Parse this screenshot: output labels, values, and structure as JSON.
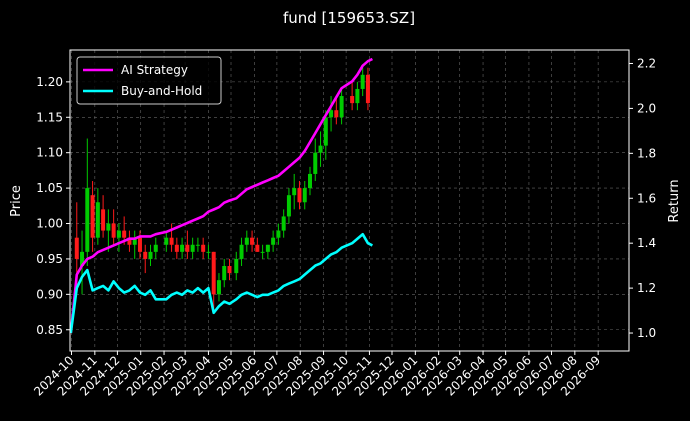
{
  "chart_data": {
    "type": "line",
    "title": "fund [159653.SZ]",
    "ylabel": "Price",
    "ylabel_right": "Return",
    "ylim": [
      0.82,
      1.245
    ],
    "ylim_right": [
      0.92,
      2.26
    ],
    "yticks": [
      0.85,
      0.9,
      0.95,
      1.0,
      1.05,
      1.1,
      1.15,
      1.2
    ],
    "yticks_right": [
      1.0,
      1.2,
      1.4,
      1.6,
      1.8,
      2.0,
      2.2
    ],
    "yticklabels": [
      "0.85",
      "0.90",
      "0.95",
      "1.00",
      "1.05",
      "1.10",
      "1.15",
      "1.20"
    ],
    "yticklabels_right": [
      "1.0",
      "1.2",
      "1.4",
      "1.6",
      "1.8",
      "2.0",
      "2.2"
    ],
    "xticks": [
      "2024-10",
      "2024-11",
      "2024-12",
      "2025-01",
      "2025-02",
      "2025-03",
      "2025-04",
      "2025-05",
      "2025-06",
      "2025-07",
      "2025-08",
      "2025-09",
      "2025-10",
      "2025-11",
      "2025-12",
      "2026-01",
      "2026-02",
      "2026-03",
      "2026-04",
      "2026-05",
      "2026-06",
      "2026-07",
      "2026-08",
      "2026-09"
    ],
    "xlim": [
      "2024-09-29",
      "2026-10-12"
    ],
    "grid": true,
    "legend_position": "top-left",
    "candles": [
      [
        "2024-10-08",
        0.98,
        1.03,
        0.91,
        0.95
      ],
      [
        "2024-10-15",
        0.94,
        0.99,
        0.9,
        0.96
      ],
      [
        "2024-10-22",
        0.96,
        1.12,
        0.94,
        1.05
      ],
      [
        "2024-10-29",
        1.04,
        1.06,
        0.96,
        0.98
      ],
      [
        "2024-11-05",
        0.98,
        1.05,
        0.97,
        1.03
      ],
      [
        "2024-11-12",
        1.02,
        1.04,
        0.98,
        0.99
      ],
      [
        "2024-11-19",
        0.99,
        1.02,
        0.96,
        1.0
      ],
      [
        "2024-11-26",
        1.0,
        1.02,
        0.97,
        0.98
      ],
      [
        "2024-12-03",
        0.98,
        1.0,
        0.96,
        0.99
      ],
      [
        "2024-12-10",
        0.99,
        1.01,
        0.97,
        0.98
      ],
      [
        "2024-12-17",
        0.98,
        0.99,
        0.96,
        0.97
      ],
      [
        "2024-12-24",
        0.97,
        0.99,
        0.95,
        0.98
      ],
      [
        "2024-12-31",
        0.98,
        0.99,
        0.95,
        0.96
      ],
      [
        "2025-01-07",
        0.96,
        0.97,
        0.93,
        0.95
      ],
      [
        "2025-01-14",
        0.95,
        0.97,
        0.94,
        0.96
      ],
      [
        "2025-01-21",
        0.96,
        0.98,
        0.95,
        0.97
      ],
      [
        "2025-02-04",
        0.97,
        0.99,
        0.96,
        0.98
      ],
      [
        "2025-02-11",
        0.98,
        1.0,
        0.96,
        0.97
      ],
      [
        "2025-02-18",
        0.97,
        0.98,
        0.95,
        0.96
      ],
      [
        "2025-02-25",
        0.96,
        0.98,
        0.95,
        0.97
      ],
      [
        "2025-03-04",
        0.97,
        0.99,
        0.95,
        0.96
      ],
      [
        "2025-03-11",
        0.96,
        0.98,
        0.95,
        0.97
      ],
      [
        "2025-03-18",
        0.97,
        0.98,
        0.96,
        0.97
      ],
      [
        "2025-03-25",
        0.97,
        0.98,
        0.95,
        0.96
      ],
      [
        "2025-04-01",
        0.96,
        0.97,
        0.95,
        0.96
      ],
      [
        "2025-04-08",
        0.96,
        0.96,
        0.88,
        0.9
      ],
      [
        "2025-04-15",
        0.9,
        0.93,
        0.89,
        0.92
      ],
      [
        "2025-04-22",
        0.92,
        0.95,
        0.91,
        0.94
      ],
      [
        "2025-04-29",
        0.94,
        0.95,
        0.92,
        0.93
      ],
      [
        "2025-05-08",
        0.93,
        0.96,
        0.92,
        0.95
      ],
      [
        "2025-05-15",
        0.95,
        0.98,
        0.94,
        0.97
      ],
      [
        "2025-05-22",
        0.97,
        0.99,
        0.96,
        0.98
      ],
      [
        "2025-05-29",
        0.98,
        0.99,
        0.96,
        0.97
      ],
      [
        "2025-06-05",
        0.97,
        0.98,
        0.96,
        0.96
      ],
      [
        "2025-06-12",
        0.96,
        0.97,
        0.95,
        0.96
      ],
      [
        "2025-06-19",
        0.96,
        0.97,
        0.95,
        0.97
      ],
      [
        "2025-06-26",
        0.97,
        0.99,
        0.96,
        0.98
      ],
      [
        "2025-07-03",
        0.98,
        1.0,
        0.97,
        0.99
      ],
      [
        "2025-07-10",
        0.99,
        1.02,
        0.98,
        1.01
      ],
      [
        "2025-07-17",
        1.01,
        1.05,
        1.0,
        1.04
      ],
      [
        "2025-07-24",
        1.04,
        1.07,
        1.02,
        1.05
      ],
      [
        "2025-07-31",
        1.05,
        1.06,
        1.02,
        1.03
      ],
      [
        "2025-08-07",
        1.03,
        1.06,
        1.02,
        1.05
      ],
      [
        "2025-08-14",
        1.05,
        1.08,
        1.04,
        1.07
      ],
      [
        "2025-08-21",
        1.07,
        1.12,
        1.06,
        1.1
      ],
      [
        "2025-08-28",
        1.1,
        1.13,
        1.08,
        1.11
      ],
      [
        "2025-09-04",
        1.11,
        1.16,
        1.09,
        1.15
      ],
      [
        "2025-09-11",
        1.15,
        1.18,
        1.13,
        1.16
      ],
      [
        "2025-09-18",
        1.16,
        1.18,
        1.14,
        1.15
      ],
      [
        "2025-09-25",
        1.15,
        1.19,
        1.14,
        1.18
      ],
      [
        "2025-10-09",
        1.18,
        1.2,
        1.16,
        1.17
      ],
      [
        "2025-10-16",
        1.17,
        1.2,
        1.16,
        1.19
      ],
      [
        "2025-10-23",
        1.19,
        1.22,
        1.18,
        1.21
      ],
      [
        "2025-10-30",
        1.21,
        1.22,
        1.16,
        1.17
      ]
    ],
    "series": [
      {
        "name": "AI Strategy",
        "color": "#ff00ff",
        "axis": "right",
        "points": [
          [
            "2024-09-30",
            1.0
          ],
          [
            "2024-10-08",
            1.26
          ],
          [
            "2024-10-15",
            1.3
          ],
          [
            "2024-10-22",
            1.33
          ],
          [
            "2024-10-29",
            1.34
          ],
          [
            "2024-11-05",
            1.36
          ],
          [
            "2024-11-12",
            1.37
          ],
          [
            "2024-11-19",
            1.38
          ],
          [
            "2024-11-26",
            1.39
          ],
          [
            "2024-12-03",
            1.4
          ],
          [
            "2024-12-10",
            1.41
          ],
          [
            "2024-12-17",
            1.42
          ],
          [
            "2024-12-24",
            1.42
          ],
          [
            "2024-12-31",
            1.43
          ],
          [
            "2025-01-07",
            1.43
          ],
          [
            "2025-01-14",
            1.43
          ],
          [
            "2025-01-21",
            1.44
          ],
          [
            "2025-02-04",
            1.45
          ],
          [
            "2025-02-11",
            1.46
          ],
          [
            "2025-02-18",
            1.47
          ],
          [
            "2025-02-25",
            1.48
          ],
          [
            "2025-03-04",
            1.49
          ],
          [
            "2025-03-11",
            1.5
          ],
          [
            "2025-03-18",
            1.51
          ],
          [
            "2025-03-25",
            1.52
          ],
          [
            "2025-04-01",
            1.54
          ],
          [
            "2025-04-08",
            1.55
          ],
          [
            "2025-04-15",
            1.56
          ],
          [
            "2025-04-22",
            1.58
          ],
          [
            "2025-04-29",
            1.59
          ],
          [
            "2025-05-08",
            1.6
          ],
          [
            "2025-05-15",
            1.62
          ],
          [
            "2025-05-22",
            1.64
          ],
          [
            "2025-05-29",
            1.65
          ],
          [
            "2025-06-05",
            1.66
          ],
          [
            "2025-06-12",
            1.67
          ],
          [
            "2025-06-19",
            1.68
          ],
          [
            "2025-06-26",
            1.69
          ],
          [
            "2025-07-03",
            1.7
          ],
          [
            "2025-07-10",
            1.72
          ],
          [
            "2025-07-17",
            1.74
          ],
          [
            "2025-07-24",
            1.76
          ],
          [
            "2025-07-31",
            1.78
          ],
          [
            "2025-08-07",
            1.81
          ],
          [
            "2025-08-14",
            1.85
          ],
          [
            "2025-08-21",
            1.89
          ],
          [
            "2025-08-28",
            1.93
          ],
          [
            "2025-09-04",
            1.97
          ],
          [
            "2025-09-11",
            2.01
          ],
          [
            "2025-09-18",
            2.05
          ],
          [
            "2025-09-25",
            2.09
          ],
          [
            "2025-10-09",
            2.12
          ],
          [
            "2025-10-16",
            2.15
          ],
          [
            "2025-10-23",
            2.19
          ],
          [
            "2025-10-30",
            2.21
          ],
          [
            "2025-11-05",
            2.22
          ]
        ]
      },
      {
        "name": "Buy-and-Hold",
        "color": "#00ffff",
        "axis": "right",
        "points": [
          [
            "2024-09-30",
            1.0
          ],
          [
            "2024-10-08",
            1.2
          ],
          [
            "2024-10-15",
            1.25
          ],
          [
            "2024-10-22",
            1.28
          ],
          [
            "2024-10-29",
            1.19
          ],
          [
            "2024-11-05",
            1.2
          ],
          [
            "2024-11-12",
            1.21
          ],
          [
            "2024-11-19",
            1.19
          ],
          [
            "2024-11-26",
            1.23
          ],
          [
            "2024-12-03",
            1.2
          ],
          [
            "2024-12-10",
            1.18
          ],
          [
            "2024-12-17",
            1.19
          ],
          [
            "2024-12-24",
            1.21
          ],
          [
            "2024-12-31",
            1.18
          ],
          [
            "2025-01-07",
            1.17
          ],
          [
            "2025-01-14",
            1.19
          ],
          [
            "2025-01-21",
            1.15
          ],
          [
            "2025-02-04",
            1.15
          ],
          [
            "2025-02-11",
            1.17
          ],
          [
            "2025-02-18",
            1.18
          ],
          [
            "2025-02-25",
            1.17
          ],
          [
            "2025-03-04",
            1.19
          ],
          [
            "2025-03-11",
            1.18
          ],
          [
            "2025-03-18",
            1.2
          ],
          [
            "2025-03-25",
            1.18
          ],
          [
            "2025-04-01",
            1.2
          ],
          [
            "2025-04-08",
            1.09
          ],
          [
            "2025-04-15",
            1.12
          ],
          [
            "2025-04-22",
            1.14
          ],
          [
            "2025-04-29",
            1.13
          ],
          [
            "2025-05-08",
            1.15
          ],
          [
            "2025-05-15",
            1.17
          ],
          [
            "2025-05-22",
            1.18
          ],
          [
            "2025-05-29",
            1.17
          ],
          [
            "2025-06-05",
            1.16
          ],
          [
            "2025-06-12",
            1.17
          ],
          [
            "2025-06-19",
            1.17
          ],
          [
            "2025-06-26",
            1.18
          ],
          [
            "2025-07-03",
            1.19
          ],
          [
            "2025-07-10",
            1.21
          ],
          [
            "2025-07-17",
            1.22
          ],
          [
            "2025-07-24",
            1.23
          ],
          [
            "2025-07-31",
            1.24
          ],
          [
            "2025-08-07",
            1.26
          ],
          [
            "2025-08-14",
            1.28
          ],
          [
            "2025-08-21",
            1.3
          ],
          [
            "2025-08-28",
            1.31
          ],
          [
            "2025-09-04",
            1.33
          ],
          [
            "2025-09-11",
            1.35
          ],
          [
            "2025-09-18",
            1.36
          ],
          [
            "2025-09-25",
            1.38
          ],
          [
            "2025-10-09",
            1.4
          ],
          [
            "2025-10-16",
            1.42
          ],
          [
            "2025-10-23",
            1.44
          ],
          [
            "2025-10-30",
            1.4
          ],
          [
            "2025-11-05",
            1.39
          ]
        ]
      }
    ]
  },
  "colors": {
    "background": "#000000",
    "axes_face": "#000000",
    "foreground": "#ffffff",
    "grid": "#666666",
    "candle_up": "#00cc00",
    "candle_down": "#ff1a1a"
  }
}
